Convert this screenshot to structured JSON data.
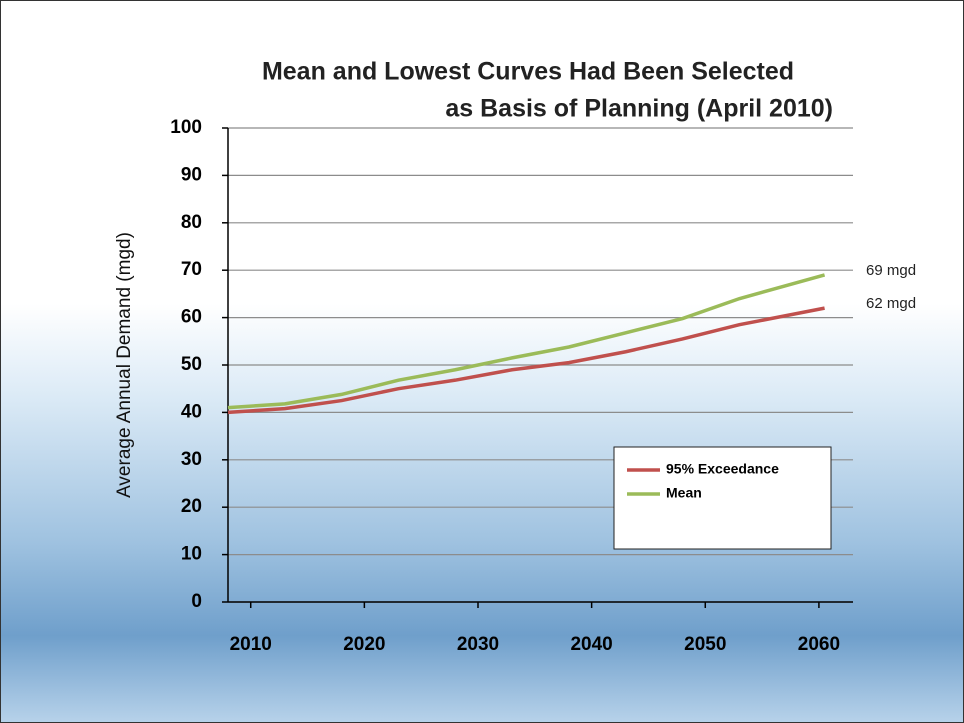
{
  "chart_data": {
    "type": "line",
    "title": [
      "Mean and Lowest Curves Had Been Selected",
      "as Basis of Planning (April 2010)"
    ],
    "y_label": "Average Annual Demand (mgd)",
    "x": [
      2008,
      2013,
      2018,
      2023,
      2028,
      2033,
      2038,
      2043,
      2048,
      2053,
      2060.5
    ],
    "series": [
      {
        "name": "95% Exceedance",
        "color": "#c0504d",
        "values": [
          40,
          40.8,
          42.5,
          45,
          46.8,
          49,
          50.5,
          52.8,
          55.5,
          58.5,
          62
        ]
      },
      {
        "name": "Mean",
        "color": "#9bbb59",
        "values": [
          41,
          41.8,
          43.8,
          46.8,
          49,
          51.5,
          53.8,
          56.8,
          59.8,
          64,
          69
        ]
      }
    ],
    "annotations": [
      "69 mgd",
      "62 mgd"
    ],
    "xlim": [
      2008,
      2063
    ],
    "xticks": [
      2010,
      2020,
      2030,
      2040,
      2050,
      2060
    ],
    "ylim": [
      0,
      100
    ],
    "yticks": [
      0,
      10,
      20,
      30,
      40,
      50,
      60,
      70,
      80,
      90,
      100
    ],
    "grid": true,
    "legend": "lower right"
  }
}
